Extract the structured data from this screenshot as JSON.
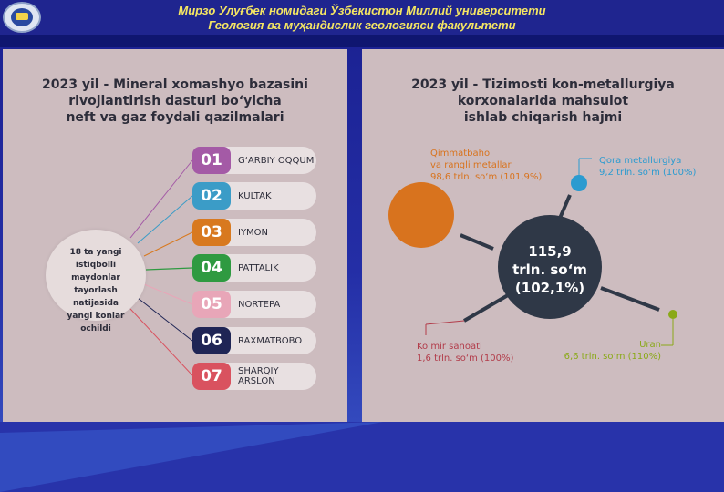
{
  "header": {
    "line1": "Мирзо Улуғбек номидаги Ўзбекистон Миллий университети",
    "line2": "Геология ва муҳандислик геологияси факультети"
  },
  "left_panel": {
    "title_line1": "2023 yil - Mineral xomashyo bazasini",
    "title_line2": "rivojlantirish dasturi bo‘yicha",
    "title_line3": "neft va gaz foydali qazilmalari",
    "center_lines": [
      "18 ta yangi",
      "istiqbolli maydonlar",
      "tayorlash natijasida",
      "yangi konlar",
      "ochildi"
    ],
    "items": [
      {
        "num": "01",
        "label": "G‘ARBIY OQQUM",
        "color": "#a45aa6"
      },
      {
        "num": "02",
        "label": "KULTAK",
        "color": "#3b9cc7"
      },
      {
        "num": "03",
        "label": "IYMON",
        "color": "#d8791f"
      },
      {
        "num": "04",
        "label": "PATTALIK",
        "color": "#2f9a41"
      },
      {
        "num": "05",
        "label": "NORTEPA",
        "color": "#e8a6b8"
      },
      {
        "num": "06",
        "label": "RAXMATBOBO",
        "color": "#1f2555"
      },
      {
        "num": "07",
        "label": "SHARQIY ARSLON",
        "color": "#d9525f"
      }
    ]
  },
  "right_panel": {
    "title_line1": "2023 yil - Tizimosti kon-metallurgiya",
    "title_line2": "korxonalarida mahsulot",
    "title_line3": "ishlab chiqarish hajmi",
    "center_line1": "115,9",
    "center_line2": "trln. so‘m",
    "center_line3": "(102,1%)",
    "segments": {
      "precious": {
        "name_line1": "Qimmatbaho",
        "name_line2": "va rangli metallar",
        "value": "98,6 trln. so‘m (101,9%)",
        "color": "#d8731e"
      },
      "ferrous": {
        "name": "Qora metallurgiya",
        "value": "9,2 trln. so‘m (100%)",
        "color": "#2b9bd0"
      },
      "coal": {
        "name": "Ko‘mir sanoati",
        "value": "1,6 trln. so‘m (100%)",
        "color": "#b23c4a"
      },
      "uranium": {
        "name": "Uran",
        "value": "6,6 trln. so‘m (110%)",
        "color": "#8aa918"
      }
    }
  },
  "colors": {
    "background": "#20289a",
    "header_text": "#f5e663",
    "panel": "#cdbcbf",
    "center_circle": "#2f3847"
  }
}
